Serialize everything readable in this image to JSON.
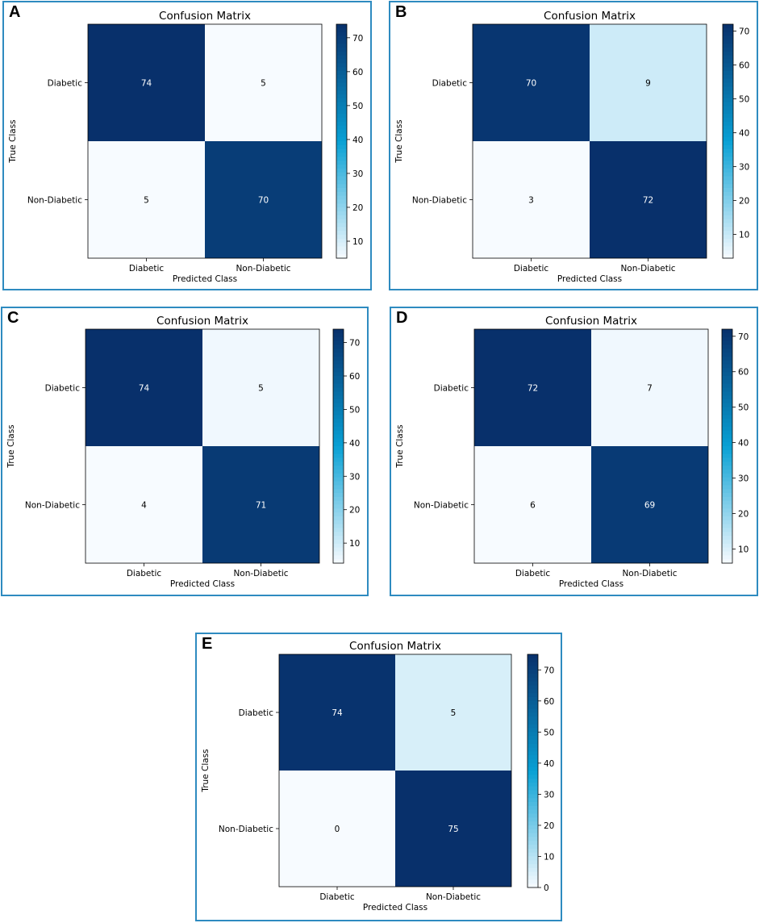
{
  "chart_data": [
    {
      "panel": "A",
      "type": "heatmap",
      "title": "Confusion Matrix",
      "xlabel": "Predicted Class",
      "ylabel": "True Class",
      "x_categories": [
        "Diabetic",
        "Non-Diabetic"
      ],
      "y_categories": [
        "Diabetic",
        "Non-Diabetic"
      ],
      "values": [
        [
          74,
          5
        ],
        [
          5,
          70
        ]
      ],
      "colormap": "Blues",
      "colorbar_ticks": [
        10,
        20,
        30,
        40,
        50,
        60,
        70
      ],
      "vmin": 5,
      "vmax": 74
    },
    {
      "panel": "B",
      "type": "heatmap",
      "title": "Confusion Matrix",
      "xlabel": "Predicted Class",
      "ylabel": "True Class",
      "x_categories": [
        "Diabetic",
        "Non-Diabetic"
      ],
      "y_categories": [
        "Diabetic",
        "Non-Diabetic"
      ],
      "values": [
        [
          70,
          9
        ],
        [
          3,
          72
        ]
      ],
      "colormap": "Blues",
      "colorbar_ticks": [
        10,
        20,
        30,
        40,
        50,
        60,
        70
      ],
      "vmin": 3,
      "vmax": 72
    },
    {
      "panel": "C",
      "type": "heatmap",
      "title": "Confusion Matrix",
      "xlabel": "Predicted Class",
      "ylabel": "True Class",
      "x_categories": [
        "Diabetic",
        "Non-Diabetic"
      ],
      "y_categories": [
        "Diabetic",
        "Non-Diabetic"
      ],
      "values": [
        [
          74,
          5
        ],
        [
          4,
          71
        ]
      ],
      "colormap": "Blues",
      "colorbar_ticks": [
        10,
        20,
        30,
        40,
        50,
        60,
        70
      ],
      "vmin": 4,
      "vmax": 74
    },
    {
      "panel": "D",
      "type": "heatmap",
      "title": "Confusion Matrix",
      "xlabel": "Predicted Class",
      "ylabel": "True Class",
      "x_categories": [
        "Diabetic",
        "Non-Diabetic"
      ],
      "y_categories": [
        "Diabetic",
        "Non-Diabetic"
      ],
      "values": [
        [
          72,
          7
        ],
        [
          6,
          69
        ]
      ],
      "colormap": "Blues",
      "colorbar_ticks": [
        10,
        20,
        30,
        40,
        50,
        60,
        70
      ],
      "vmin": 6,
      "vmax": 72
    },
    {
      "panel": "E",
      "type": "heatmap",
      "title": "Confusion Matrix",
      "xlabel": "Predicted Class",
      "ylabel": "True Class",
      "x_categories": [
        "Diabetic",
        "Non-Diabetic"
      ],
      "y_categories": [
        "Diabetic",
        "Non-Diabetic"
      ],
      "values": [
        [
          74,
          5
        ],
        [
          0,
          75
        ]
      ],
      "colormap": "Blues",
      "colorbar_ticks": [
        0,
        10,
        20,
        30,
        40,
        50,
        60,
        70
      ],
      "vmin": 0,
      "vmax": 75
    }
  ],
  "colors": {
    "panel_border": "#2e8bc0",
    "cmap_light": "#f7fbff",
    "cmap_mid": "#08a0d4",
    "cmap_dark": "#08306b"
  }
}
